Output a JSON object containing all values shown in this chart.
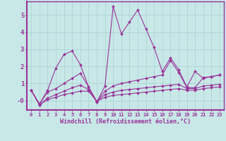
{
  "xlabel": "Windchill (Refroidissement éolien,°C)",
  "background_color": "#c8e8e8",
  "grid_color": "#a8d0d0",
  "line_color": "#993399",
  "axis_color": "#993399",
  "ylim": [
    -0.55,
    5.8
  ],
  "xlim": [
    -0.5,
    23.5
  ],
  "series": [
    [
      0.6,
      -0.2,
      0.6,
      1.9,
      2.7,
      2.9,
      2.1,
      0.8,
      -0.1,
      0.85,
      5.5,
      3.9,
      4.6,
      5.3,
      4.2,
      3.1,
      1.7,
      2.5,
      1.8,
      0.8,
      1.7,
      1.3,
      1.4,
      1.5
    ],
    [
      0.6,
      -0.2,
      0.5,
      0.7,
      1.0,
      1.3,
      1.6,
      0.8,
      -0.05,
      0.55,
      0.85,
      1.0,
      1.1,
      1.2,
      1.3,
      1.4,
      1.5,
      2.35,
      1.65,
      0.75,
      0.75,
      1.35,
      1.4,
      1.5
    ],
    [
      0.6,
      -0.25,
      0.15,
      0.35,
      0.55,
      0.75,
      0.9,
      0.65,
      -0.05,
      0.35,
      0.5,
      0.6,
      0.65,
      0.7,
      0.75,
      0.8,
      0.85,
      0.9,
      0.95,
      0.7,
      0.7,
      0.85,
      0.9,
      0.95
    ],
    [
      0.6,
      -0.25,
      0.05,
      0.2,
      0.35,
      0.45,
      0.55,
      0.55,
      -0.05,
      0.2,
      0.3,
      0.35,
      0.4,
      0.45,
      0.5,
      0.55,
      0.6,
      0.65,
      0.7,
      0.6,
      0.6,
      0.7,
      0.75,
      0.8
    ]
  ],
  "yticks": [
    0,
    1,
    2,
    3,
    4,
    5
  ],
  "ytick_labels": [
    "-0",
    "1",
    "2",
    "3",
    "4",
    "5"
  ],
  "xtick_labels": [
    "0",
    "1",
    "2",
    "3",
    "4",
    "5",
    "6",
    "7",
    "8",
    "9",
    "10",
    "11",
    "12",
    "13",
    "14",
    "15",
    "16",
    "17",
    "18",
    "19",
    "20",
    "21",
    "22",
    "23"
  ],
  "markersize": 2.0,
  "linewidth": 0.8
}
